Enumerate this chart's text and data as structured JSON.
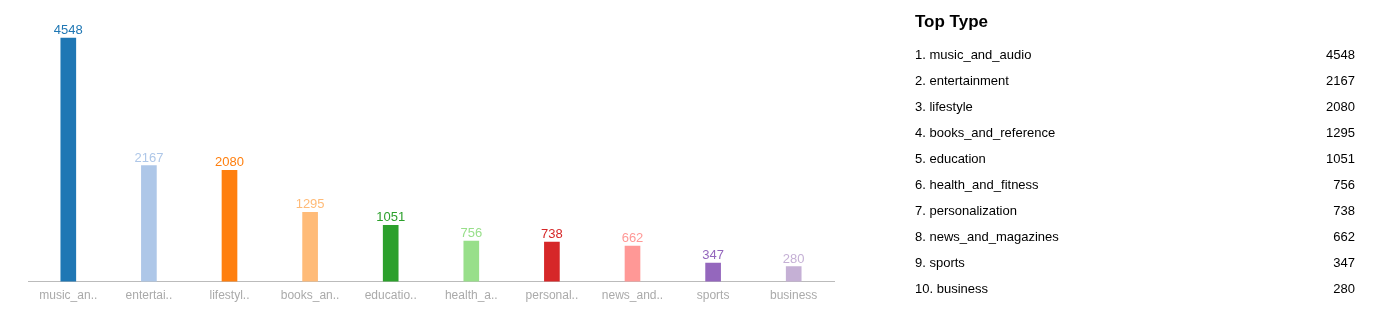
{
  "chart_data": [
    {
      "type": "bar",
      "categories": [
        "music_an..",
        "entertai..",
        "lifestyl..",
        "books_an..",
        "educatio..",
        "health_a..",
        "personal..",
        "news_and..",
        "sports",
        "business"
      ],
      "values": [
        4548,
        2167,
        2080,
        1295,
        1051,
        756,
        738,
        662,
        347,
        280
      ],
      "colors": [
        "#1f77b4",
        "#aec7e8",
        "#ff7f0e",
        "#ffbb78",
        "#2ca02c",
        "#98df8a",
        "#d62728",
        "#ff9896",
        "#9467bd",
        "#c5b0d5"
      ],
      "data_labels": true,
      "grid": false,
      "legend": false,
      "tick_labels": "x"
    },
    {
      "type": "other",
      "title": "Top Type",
      "categories": [
        "1. music_and_audio",
        "2. entertainment",
        "3. lifestyle",
        "4. books_and_reference",
        "5. education",
        "6. health_and_fitness",
        "7. personalization",
        "8. news_and_magazines",
        "9. sports",
        "10. business"
      ],
      "values": [
        4548,
        2167,
        2080,
        1295,
        1051,
        756,
        738,
        662,
        347,
        280
      ],
      "data_labels": true
    }
  ]
}
